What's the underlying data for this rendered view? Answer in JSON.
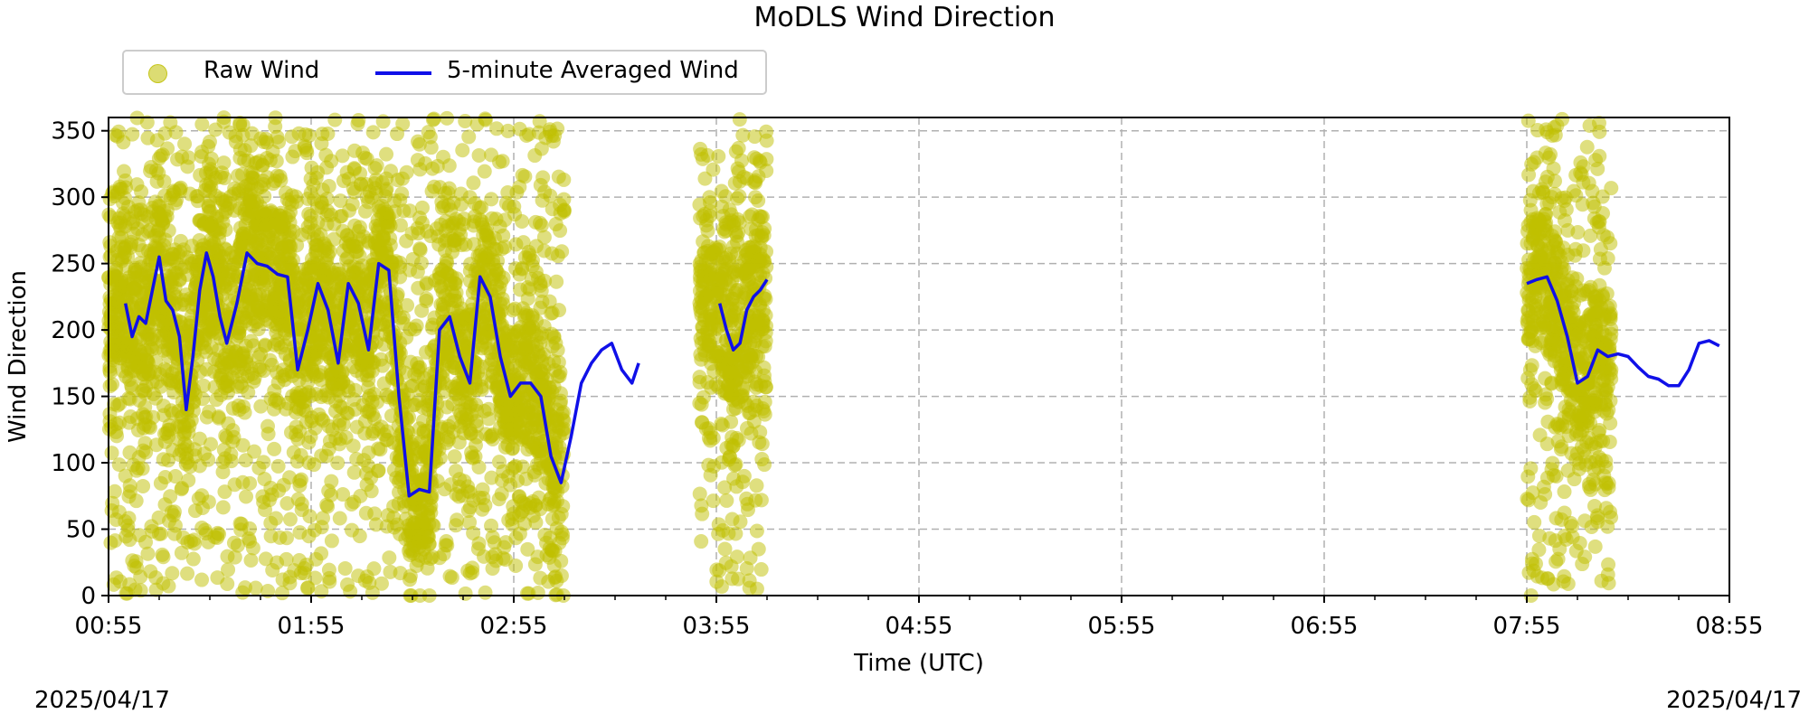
{
  "chart_data": {
    "type": "scatter",
    "title": "MoDLS Wind Direction",
    "xlabel": "Time (UTC)",
    "ylabel": "Wind Direction",
    "ylim": [
      0,
      360
    ],
    "x_range": [
      "00:55",
      "08:55"
    ],
    "x_ticks": [
      "00:55",
      "01:55",
      "02:55",
      "03:55",
      "04:55",
      "05:55",
      "06:55",
      "07:55",
      "08:55"
    ],
    "y_ticks": [
      0,
      50,
      100,
      150,
      200,
      250,
      300,
      350
    ],
    "grid": true,
    "legend_position": "top-left (outside)",
    "date_left": "2025/04/17",
    "date_right": "2025/04/17",
    "series": [
      {
        "name": "Raw Wind",
        "kind": "scatter",
        "color": "#bfbf00",
        "description_ranges": [
          {
            "start": "00:55",
            "end": "03:10"
          },
          {
            "start": "03:50",
            "end": "04:10"
          },
          {
            "start": "07:55",
            "end": "08:20"
          }
        ]
      },
      {
        "name": "5-minute Averaged Wind",
        "kind": "line",
        "color": "#1010e8",
        "segments": [
          {
            "times": [
              "01:00",
              "01:02",
              "01:04",
              "01:06",
              "01:08",
              "01:10",
              "01:12",
              "01:14",
              "01:16",
              "01:18",
              "01:20",
              "01:22",
              "01:24",
              "01:26",
              "01:28",
              "01:30",
              "01:33",
              "01:36",
              "01:39",
              "01:42",
              "01:45",
              "01:48",
              "01:51",
              "01:54",
              "01:57",
              "02:00",
              "02:03",
              "02:06",
              "02:09",
              "02:12",
              "02:15",
              "02:18",
              "02:21",
              "02:24",
              "02:27",
              "02:30",
              "02:33",
              "02:36",
              "02:39",
              "02:42",
              "02:45",
              "02:48",
              "02:51",
              "02:54",
              "02:57",
              "03:00",
              "03:03",
              "03:06",
              "03:09",
              "03:12",
              "03:15",
              "03:18",
              "03:21",
              "03:24",
              "03:27",
              "03:30",
              "03:32"
            ],
            "values": [
              220,
              195,
              210,
              205,
              230,
              255,
              222,
              215,
              195,
              140,
              180,
              230,
              258,
              240,
              210,
              190,
              220,
              258,
              250,
              248,
              242,
              240,
              170,
              200,
              235,
              215,
              175,
              235,
              220,
              185,
              250,
              245,
              150,
              75,
              80,
              78,
              200,
              210,
              180,
              160,
              240,
              225,
              180,
              150,
              160,
              160,
              150,
              105,
              85,
              120,
              160,
              175,
              185,
              190,
              170,
              160,
              175
            ]
          },
          {
            "times": [
              "03:56",
              "03:58",
              "04:00",
              "04:02",
              "04:04",
              "04:06",
              "04:08",
              "04:10"
            ],
            "values": [
              220,
              200,
              185,
              190,
              215,
              225,
              230,
              238
            ]
          },
          {
            "times": [
              "07:55",
              "07:58",
              "08:01",
              "08:04",
              "08:07",
              "08:10",
              "08:13",
              "08:16",
              "08:19",
              "08:22",
              "08:25",
              "08:28",
              "08:31",
              "08:34",
              "08:37",
              "08:40",
              "08:43",
              "08:46",
              "08:49",
              "08:52"
            ],
            "values": [
              235,
              238,
              240,
              222,
              195,
              160,
              165,
              185,
              180,
              182,
              180,
              172,
              165,
              163,
              158,
              158,
              170,
              190,
              192,
              188
            ]
          }
        ]
      }
    ]
  },
  "legend": {
    "raw_label": "Raw Wind",
    "avg_label": "5-minute Averaged Wind"
  }
}
